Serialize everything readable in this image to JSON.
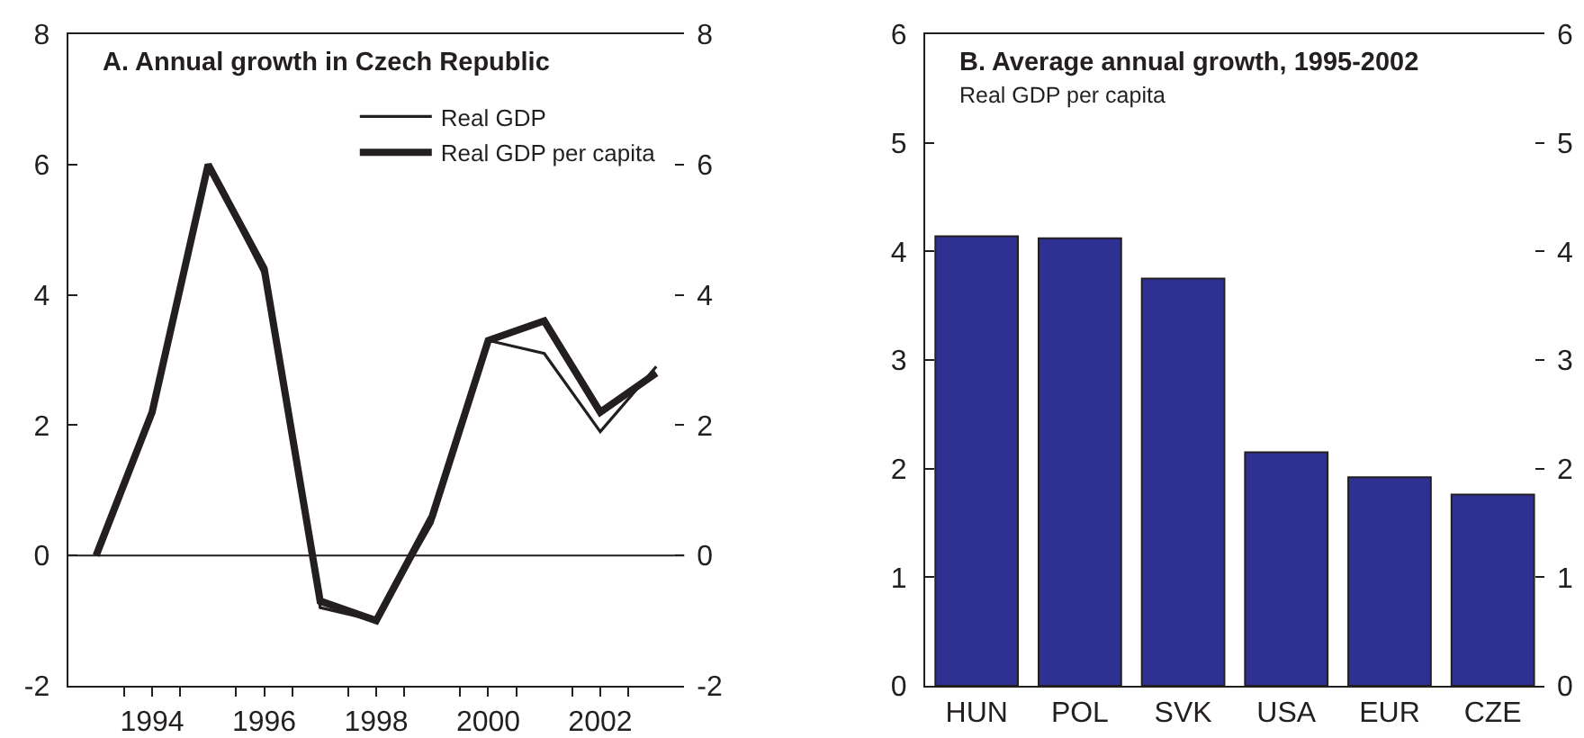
{
  "chart_data": [
    {
      "type": "line",
      "title": "A. Annual growth in Czech Republic",
      "x": [
        1993,
        1994,
        1995,
        1996,
        1997,
        1998,
        1999,
        2000,
        2001,
        2002,
        2003
      ],
      "series": [
        {
          "name": "Real GDP",
          "color": "#231f20",
          "values": [
            0.0,
            2.2,
            6.0,
            4.3,
            -0.8,
            -1.0,
            0.5,
            3.3,
            3.1,
            1.9,
            2.9
          ]
        },
        {
          "name": "Real GDP per capita",
          "color": "#231f20",
          "values": [
            0.0,
            2.2,
            6.0,
            4.4,
            -0.7,
            -1.0,
            0.6,
            3.3,
            3.6,
            2.2,
            2.8
          ]
        }
      ],
      "xlim": [
        1992.5,
        2003.5
      ],
      "xticks": [
        {
          "value": 1993.5,
          "label": null
        },
        {
          "value": 1994,
          "label": "1994"
        },
        {
          "value": 1994.5,
          "label": null
        },
        {
          "value": 1995.5,
          "label": null
        },
        {
          "value": 1996,
          "label": "1996"
        },
        {
          "value": 1996.5,
          "label": null
        },
        {
          "value": 1997.5,
          "label": null
        },
        {
          "value": 1998,
          "label": "1998"
        },
        {
          "value": 1998.5,
          "label": null
        },
        {
          "value": 1999.5,
          "label": null
        },
        {
          "value": 2000,
          "label": "2000"
        },
        {
          "value": 2000.5,
          "label": null
        },
        {
          "value": 2001.5,
          "label": null
        },
        {
          "value": 2002,
          "label": "2002"
        },
        {
          "value": 2002.5,
          "label": null
        }
      ],
      "ylim": [
        -2,
        8
      ],
      "yticks": [
        -2,
        0,
        2,
        4,
        6,
        8
      ],
      "y2lim": [
        -2,
        8
      ],
      "y2ticks": [
        -2,
        0,
        2,
        4,
        6,
        8
      ],
      "ref_lines": [
        {
          "axis": "y",
          "value": 0,
          "color": "#231f20"
        }
      ],
      "legend": "top right",
      "grid": false,
      "marker": "none",
      "line_style": "solid"
    },
    {
      "type": "bar",
      "title": "B. Average annual growth, 1995-2002",
      "subtitle": "Real GDP per capita",
      "categories": [
        "HUN",
        "POL",
        "SVK",
        "USA",
        "EUR",
        "CZE"
      ],
      "values": [
        4.14,
        4.12,
        3.75,
        2.15,
        1.92,
        1.76
      ],
      "color": "#2e3192",
      "ylim": [
        0,
        6
      ],
      "yticks": [
        0,
        1,
        2,
        3,
        4,
        5,
        6
      ],
      "y2lim": [
        0,
        6
      ],
      "y2ticks": [
        0,
        1,
        2,
        3,
        4,
        5,
        6
      ],
      "legend": false,
      "grid": false
    }
  ]
}
